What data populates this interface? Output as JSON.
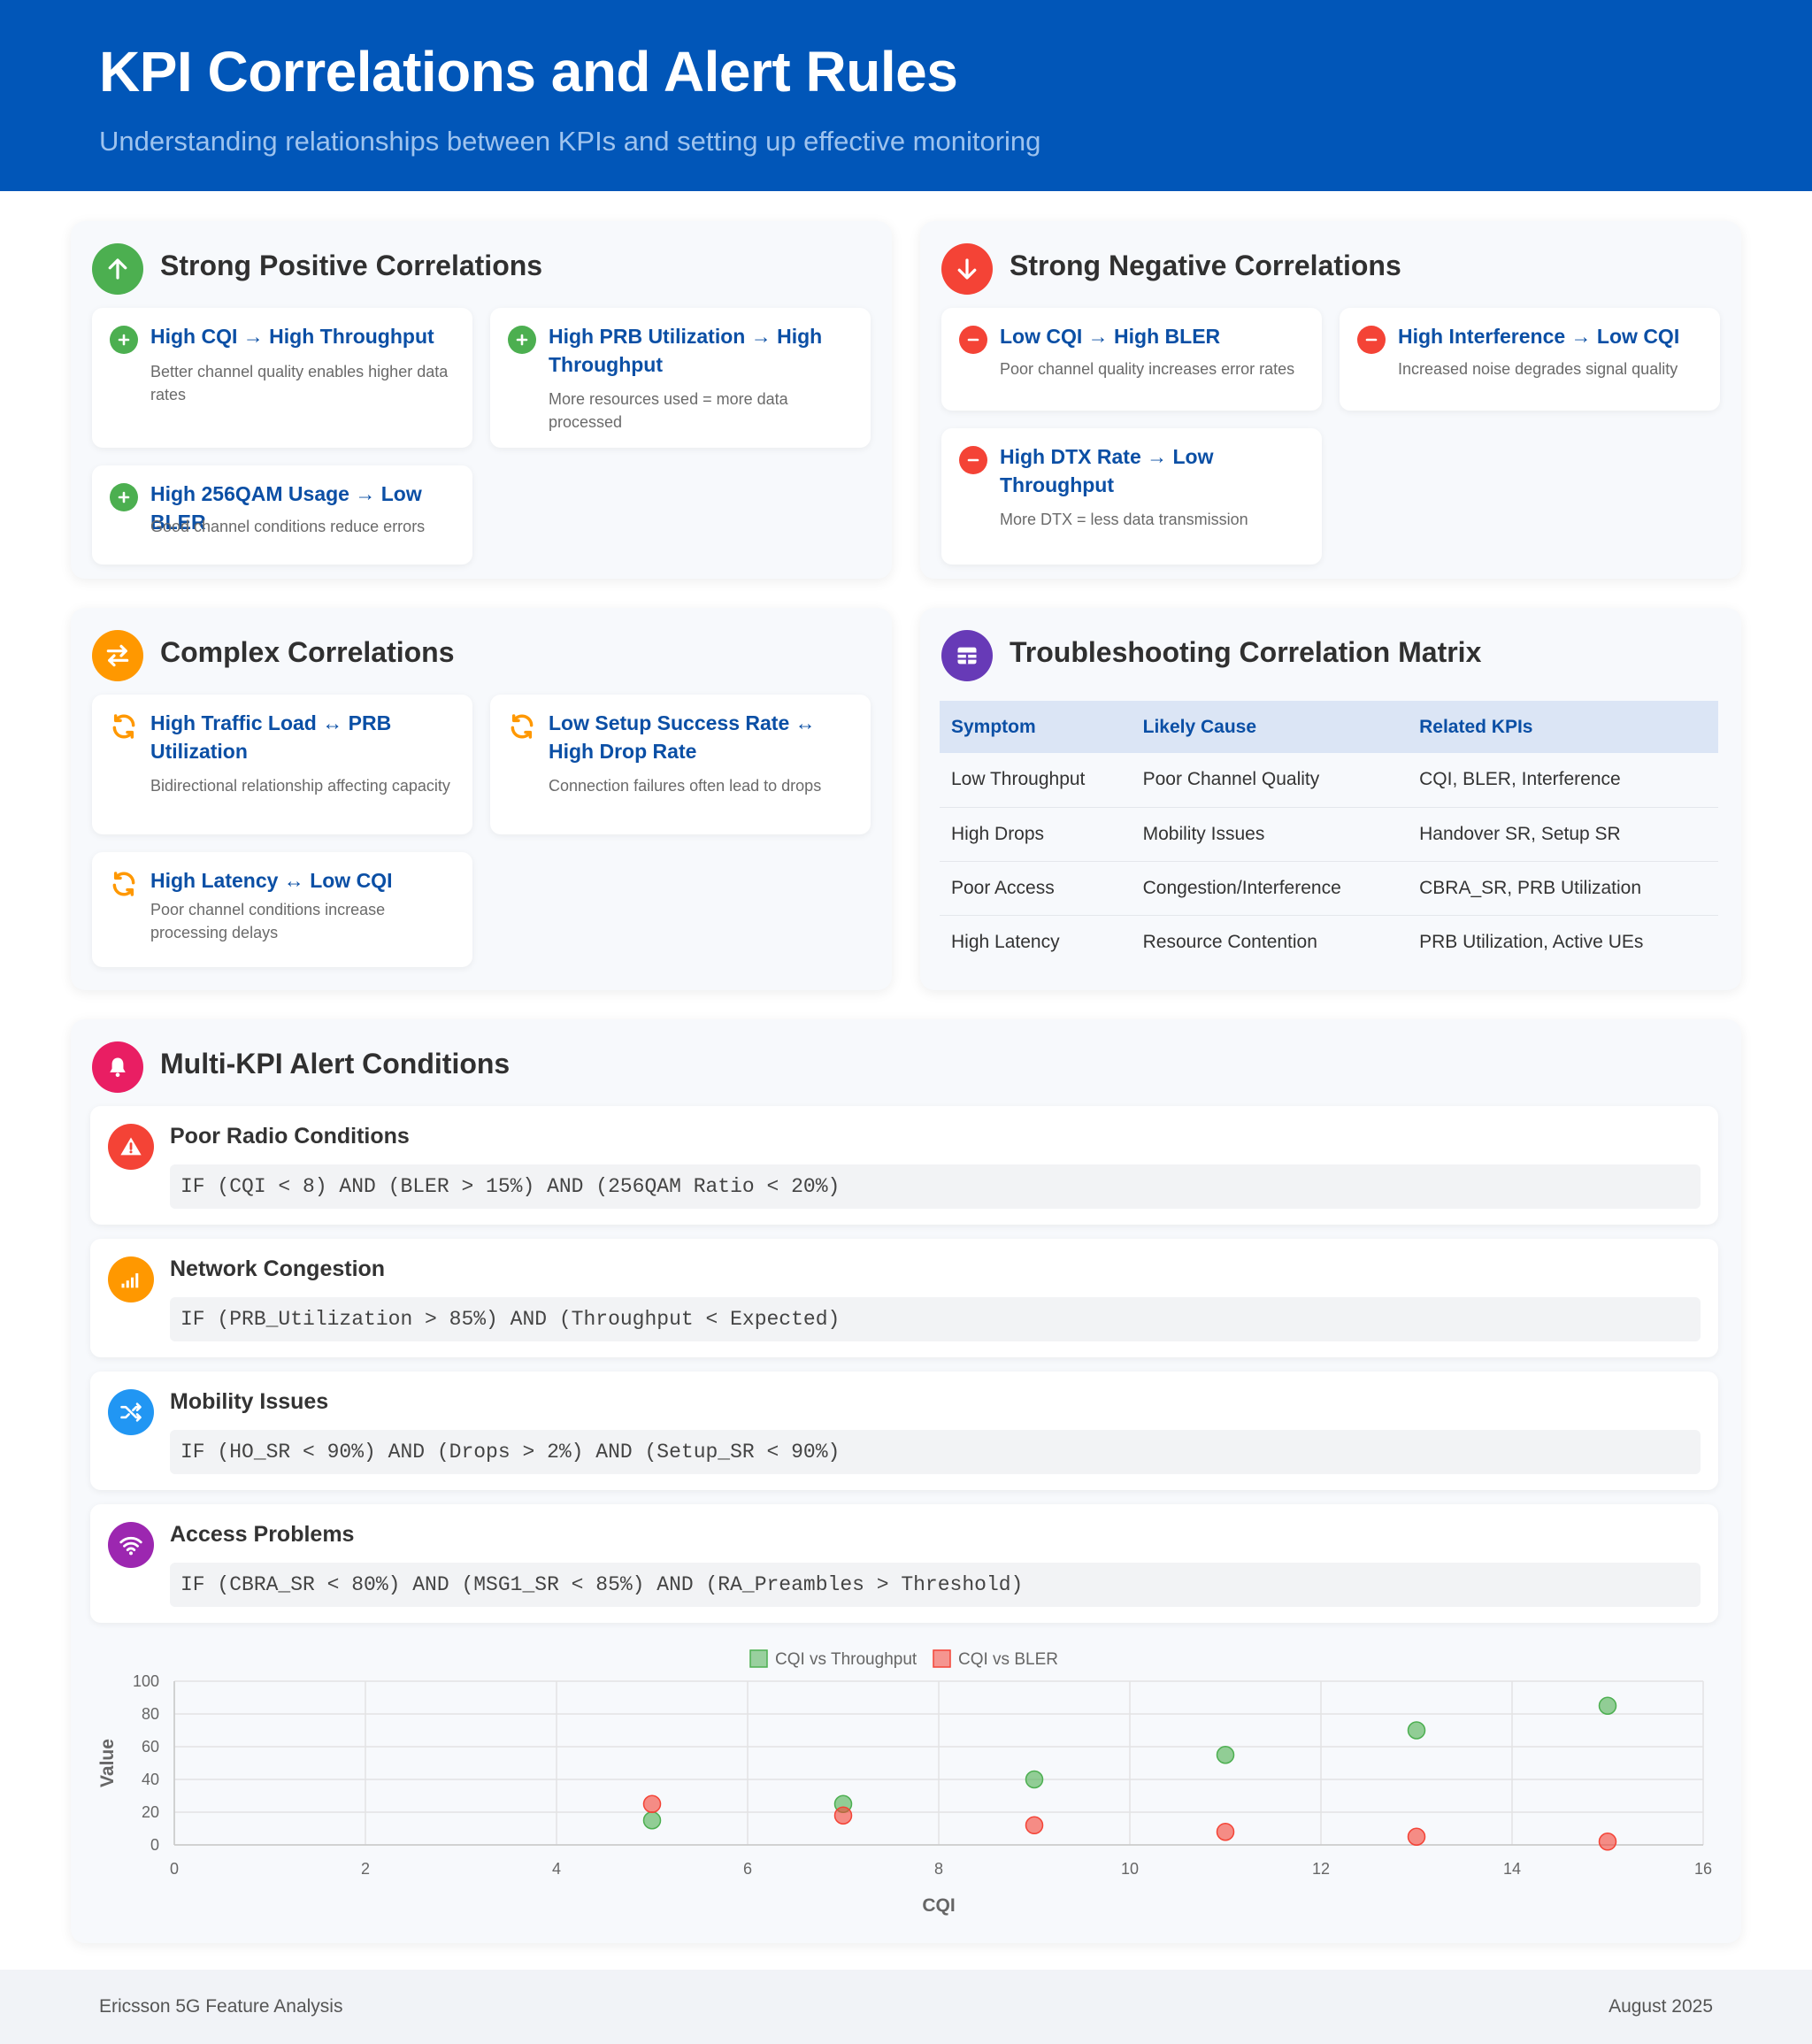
{
  "header": {
    "title": "KPI Correlations and Alert Rules",
    "subtitle": "Understanding relationships between KPIs and setting up effective monitoring"
  },
  "positive": {
    "title": "Strong Positive Correlations",
    "items": [
      {
        "title": "High CQI → High Throughput",
        "desc": "Better channel quality enables higher data rates"
      },
      {
        "title": "High PRB Utilization → High Throughput",
        "desc": "More resources used = more data processed"
      },
      {
        "title": "High 256QAM Usage → Low BLER",
        "desc": "Good channel conditions reduce errors"
      }
    ]
  },
  "negative": {
    "title": "Strong Negative Correlations",
    "items": [
      {
        "title": "Low CQI → High BLER",
        "desc": "Poor channel quality increases error rates"
      },
      {
        "title": "High Interference → Low CQI",
        "desc": "Increased noise degrades signal quality"
      },
      {
        "title": "High DTX Rate → Low Throughput",
        "desc": "More DTX = less data transmission"
      }
    ]
  },
  "complex": {
    "title": "Complex Correlations",
    "items": [
      {
        "title": "High Traffic Load ↔ PRB Utilization",
        "desc": "Bidirectional relationship affecting capacity"
      },
      {
        "title": "Low Setup Success Rate ↔ High Drop Rate",
        "desc": "Connection failures often lead to drops"
      },
      {
        "title": "High Latency ↔ Low CQI",
        "desc": "Poor channel conditions increase processing delays"
      }
    ]
  },
  "matrix": {
    "title": "Troubleshooting Correlation Matrix",
    "headers": [
      "Symptom",
      "Likely Cause",
      "Related KPIs"
    ],
    "rows": [
      [
        "Low Throughput",
        "Poor Channel Quality",
        "CQI, BLER, Interference"
      ],
      [
        "High Drops",
        "Mobility Issues",
        "Handover SR, Setup SR"
      ],
      [
        "Poor Access",
        "Congestion/Interference",
        "CBRA_SR, PRB Utilization"
      ],
      [
        "High Latency",
        "Resource Contention",
        "PRB Utilization, Active UEs"
      ]
    ]
  },
  "alerts": {
    "title": "Multi-KPI Alert Conditions",
    "items": [
      {
        "title": "Poor Radio Conditions",
        "code": "IF (CQI < 8) AND (BLER > 15%) AND (256QAM Ratio < 20%)",
        "icon": "warning-icon",
        "color": "#f44336"
      },
      {
        "title": "Network Congestion",
        "code": "IF (PRB_Utilization > 85%) AND (Throughput < Expected)",
        "icon": "signal-bars-icon",
        "color": "#ff9800"
      },
      {
        "title": "Mobility Issues",
        "code": "IF (HO_SR < 90%) AND (Drops > 2%) AND (Setup_SR < 90%)",
        "icon": "shuffle-icon",
        "color": "#2196f3"
      },
      {
        "title": "Access Problems",
        "code": "IF (CBRA_SR < 80%) AND (MSG1_SR < 85%) AND (RA_Preambles > Threshold)",
        "icon": "wifi-icon",
        "color": "#9c27b0"
      }
    ]
  },
  "colors": {
    "header_bg": "#0156b8",
    "positive": "#4caf50",
    "negative": "#f44336",
    "complex": "#ff9800",
    "matrix": "#673ab7",
    "alerts": "#e91e63",
    "link": "#0b4fa5"
  },
  "chart_data": {
    "type": "scatter",
    "xlabel": "CQI",
    "ylabel": "Value",
    "xlim": [
      0,
      16
    ],
    "ylim": [
      0,
      100
    ],
    "xticks": [
      0,
      2,
      4,
      6,
      8,
      10,
      12,
      14,
      16
    ],
    "yticks": [
      0,
      20,
      40,
      60,
      80,
      100
    ],
    "legend_position": "top",
    "grid": true,
    "series": [
      {
        "name": "CQI vs Throughput",
        "color": "#4caf50",
        "points": [
          [
            5,
            15
          ],
          [
            7,
            25
          ],
          [
            9,
            40
          ],
          [
            11,
            55
          ],
          [
            13,
            70
          ],
          [
            15,
            85
          ]
        ]
      },
      {
        "name": "CQI vs BLER",
        "color": "#f44336",
        "points": [
          [
            5,
            25
          ],
          [
            7,
            18
          ],
          [
            9,
            12
          ],
          [
            11,
            8
          ],
          [
            13,
            5
          ],
          [
            15,
            2
          ]
        ]
      }
    ]
  },
  "footer": {
    "left": "Ericsson 5G Feature Analysis",
    "right": "August 2025"
  }
}
